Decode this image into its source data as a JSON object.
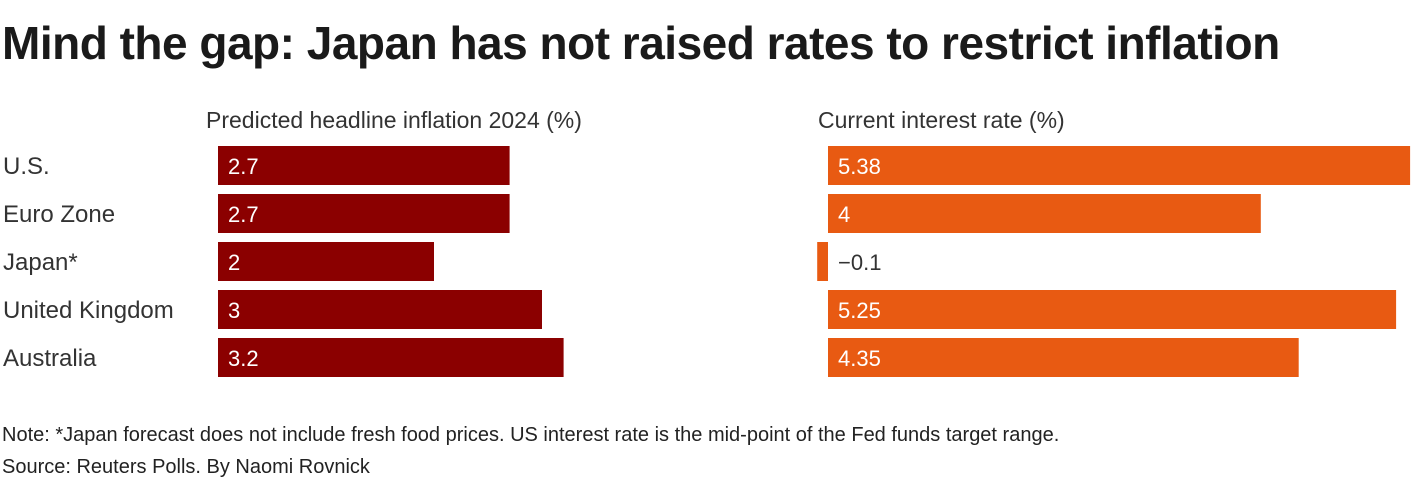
{
  "title": "Mind the gap: Japan has not raised rates to restrict inflation",
  "note": "Note: *Japan forecast does not include fresh food prices. US interest rate is the mid-point of the Fed funds target range.",
  "source": "Source: Reuters Polls. By Naomi Rovnick",
  "colors": {
    "inflation": "#8b0000",
    "interest": "#e85a12"
  },
  "chart_data": {
    "type": "bar",
    "orientation": "horizontal",
    "categories": [
      "U.S.",
      "Euro Zone",
      "Japan*",
      "United Kingdom",
      "Australia"
    ],
    "series": [
      {
        "name": "Predicted headline inflation 2024 (%)",
        "values": [
          2.7,
          2.7,
          2,
          3,
          3.2
        ],
        "labels": [
          "2.7",
          "2.7",
          "2",
          "3",
          "3.2"
        ]
      },
      {
        "name": "Current interest rate (%)",
        "values": [
          5.38,
          4,
          -0.1,
          5.25,
          4.35
        ],
        "labels": [
          "5.38",
          "4",
          "−0.1",
          "5.25",
          "4.35"
        ]
      }
    ],
    "xlim": [
      [
        0,
        3.2
      ],
      [
        -0.1,
        5.38
      ]
    ]
  }
}
